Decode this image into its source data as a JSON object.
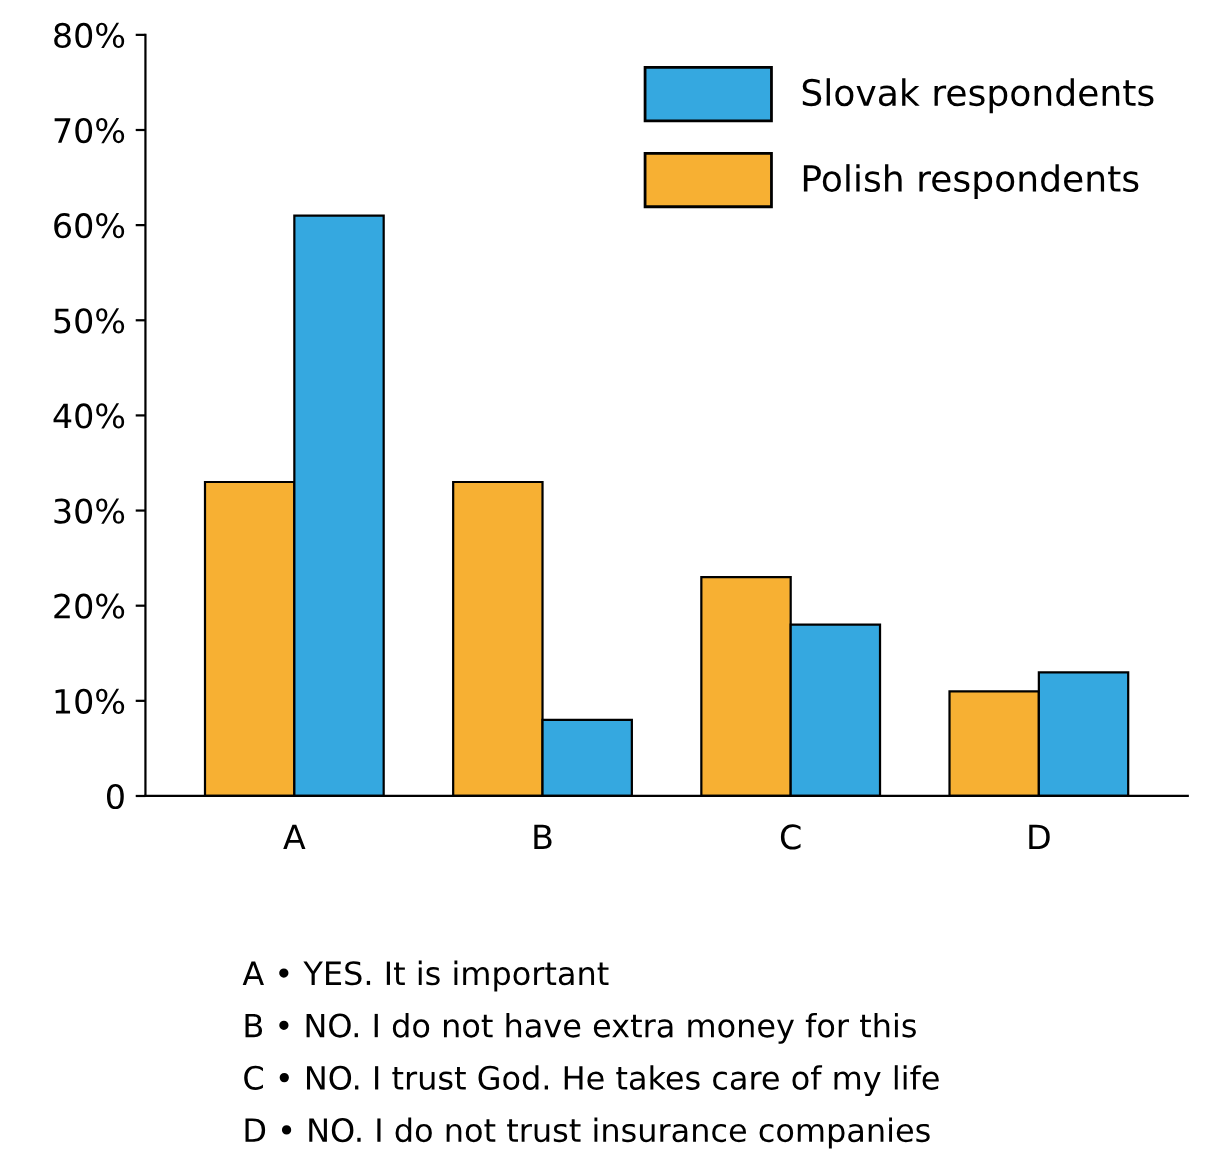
{
  "chart_data": {
    "type": "bar",
    "categories": [
      "A",
      "B",
      "C",
      "D"
    ],
    "series": [
      {
        "name": "Polish respondents",
        "color": "#f7b033",
        "values": [
          33,
          33,
          23,
          11
        ]
      },
      {
        "name": "Slovak respondents",
        "color": "#35a8e0",
        "values": [
          61,
          8,
          18,
          13
        ]
      }
    ],
    "ylim": [
      0,
      80
    ],
    "yticks": [
      {
        "value": 0,
        "label": "0"
      },
      {
        "value": 10,
        "label": "10%"
      },
      {
        "value": 20,
        "label": "20%"
      },
      {
        "value": 30,
        "label": "30%"
      },
      {
        "value": 40,
        "label": "40%"
      },
      {
        "value": 50,
        "label": "50%"
      },
      {
        "value": 60,
        "label": "60%"
      },
      {
        "value": 70,
        "label": "70%"
      },
      {
        "value": 80,
        "label": "80%"
      }
    ],
    "legend": "top right",
    "grid": false,
    "annotations": [
      "A • YES. It is important",
      "B • NO. I do not have extra money for this",
      "C • NO. I trust God. He takes care of my life",
      "D • NO. I do not trust insurance companies"
    ]
  }
}
